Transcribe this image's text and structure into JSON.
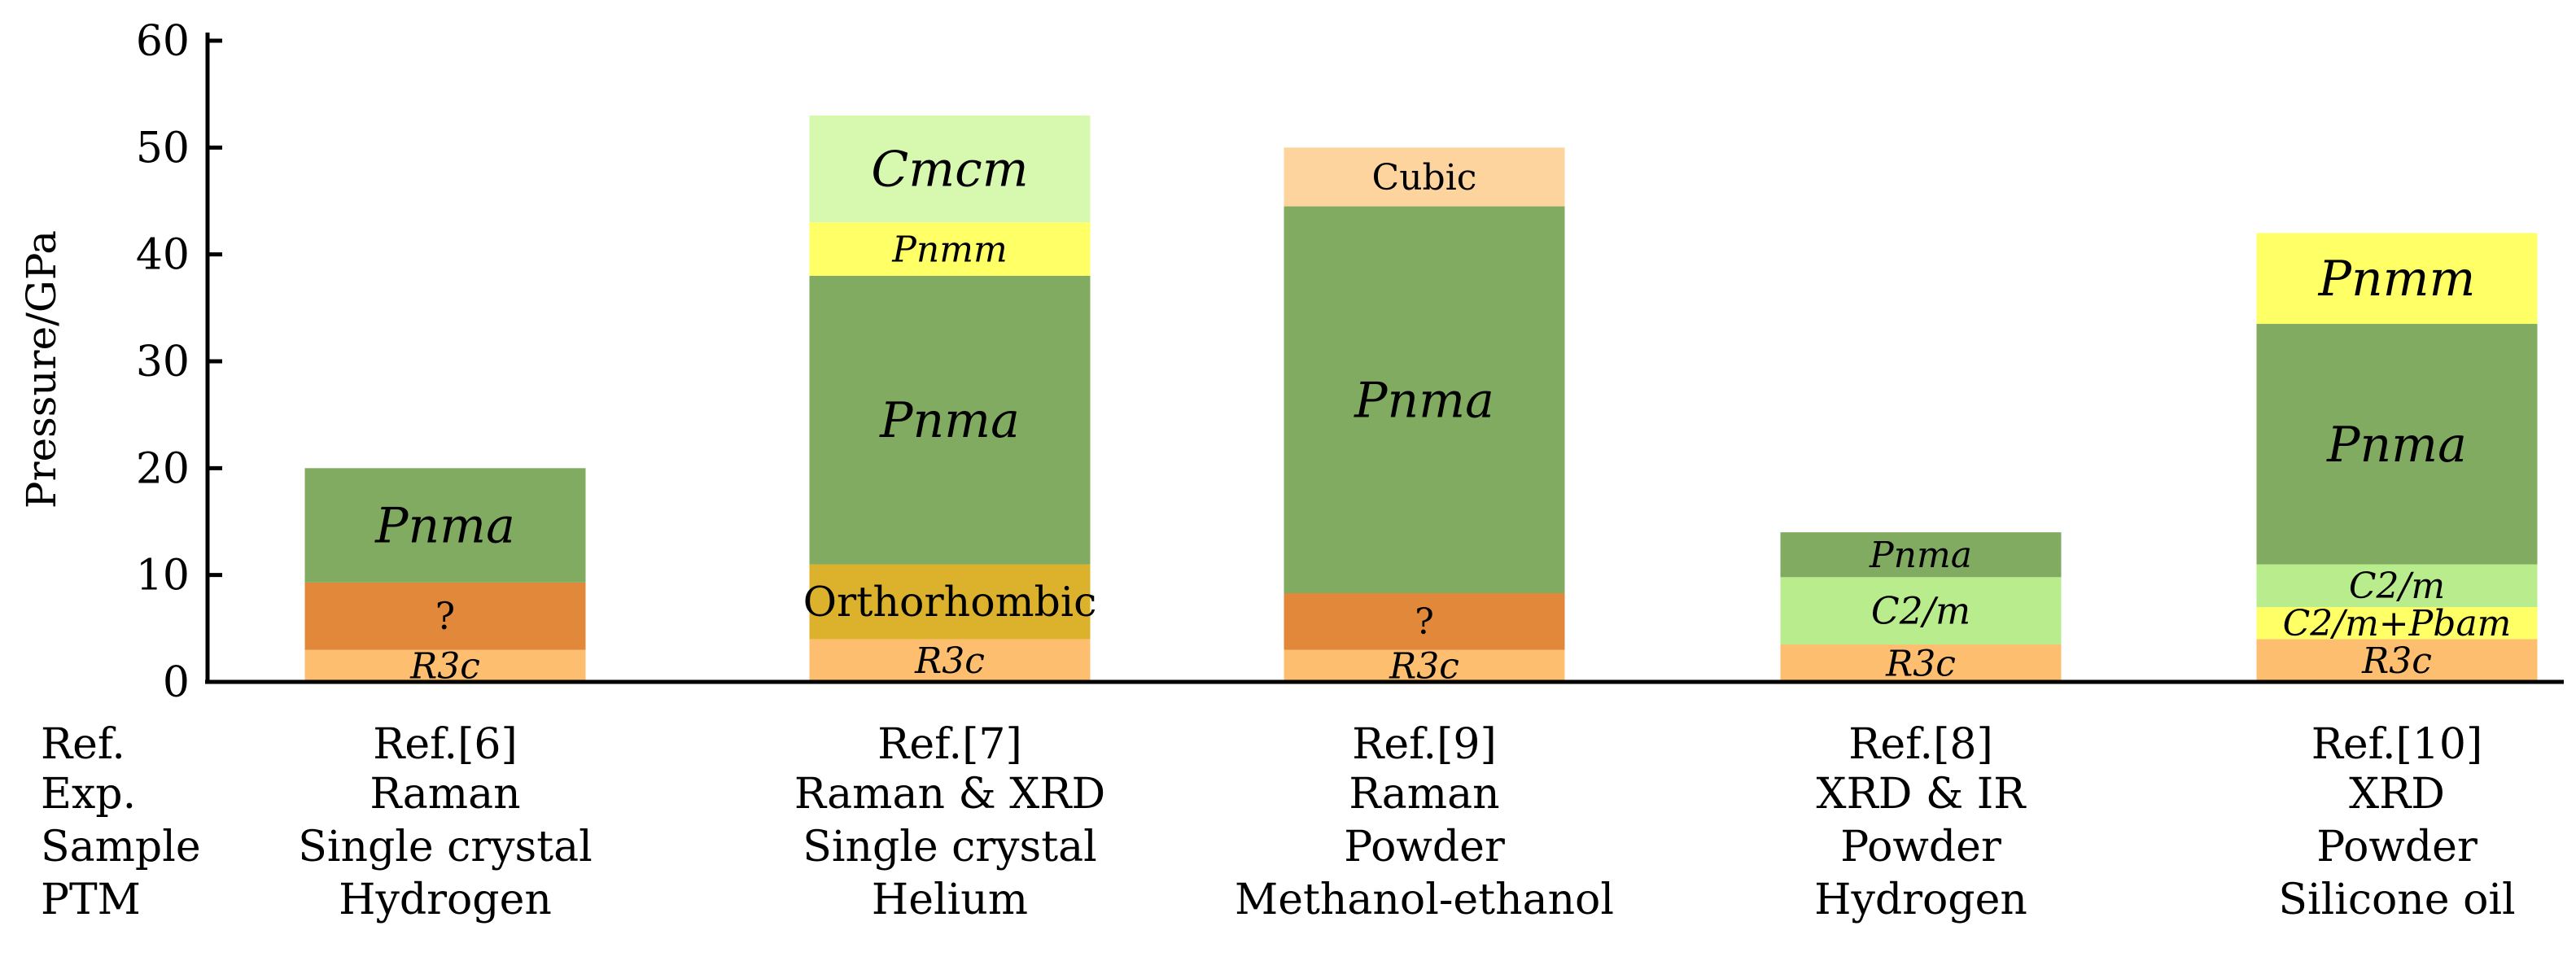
{
  "chart_data": {
    "type": "bar",
    "subtype": "stacked-range",
    "ylabel": "Pressure/GPa",
    "ylim": [
      0,
      60
    ],
    "yticks": [
      0,
      10,
      20,
      30,
      40,
      50,
      60
    ],
    "grid": false,
    "info_row_labels": [
      "Ref.",
      "Exp.",
      "Sample",
      "PTM"
    ],
    "columns": [
      {
        "info": [
          "Ref.[6]",
          "Raman",
          "Single crystal",
          "Hydrogen"
        ],
        "segments": [
          {
            "label": "R3c",
            "from": 0,
            "to": 3,
            "color": "#fdbf6f",
            "italic": true
          },
          {
            "label": "?",
            "from": 3,
            "to": 9.3,
            "color": "#e2883a",
            "italic": false
          },
          {
            "label": "Pnma",
            "from": 9.3,
            "to": 20,
            "color": "#82ab62",
            "italic": true
          }
        ]
      },
      {
        "info": [
          "Ref.[7]",
          "Raman & XRD",
          "Single crystal",
          "Helium"
        ],
        "segments": [
          {
            "label": "R3c",
            "from": 0,
            "to": 4,
            "color": "#fdbf6f",
            "italic": true
          },
          {
            "label": "Orthorhombic",
            "from": 4,
            "to": 11,
            "color": "#dcb22c",
            "italic": false
          },
          {
            "label": "Pnma",
            "from": 11,
            "to": 38,
            "color": "#82ab62",
            "italic": true
          },
          {
            "label": "Pnmm",
            "from": 38,
            "to": 43,
            "color": "#ffff66",
            "italic": true
          },
          {
            "label": "Cmcm",
            "from": 43,
            "to": 53,
            "color": "#d6f9af",
            "italic": true
          }
        ]
      },
      {
        "info": [
          "Ref.[9]",
          "Raman",
          "Powder",
          "Methanol-ethanol"
        ],
        "segments": [
          {
            "label": "R3c",
            "from": 0,
            "to": 3,
            "color": "#fdbf6f",
            "italic": true
          },
          {
            "label": "?",
            "from": 3,
            "to": 8.3,
            "color": "#e2883a",
            "italic": false
          },
          {
            "label": "Pnma",
            "from": 8.3,
            "to": 44.5,
            "color": "#82ab62",
            "italic": true
          },
          {
            "label": "Cubic",
            "from": 44.5,
            "to": 50,
            "color": "#fdd49e",
            "italic": false
          }
        ]
      },
      {
        "info": [
          "Ref.[8]",
          "XRD & IR",
          "Powder",
          "Hydrogen"
        ],
        "segments": [
          {
            "label": "R3c",
            "from": 0,
            "to": 3.5,
            "color": "#fdbf6f",
            "italic": true
          },
          {
            "label": "C2/m",
            "from": 3.5,
            "to": 9.8,
            "color": "#b9ec8c",
            "italic": true
          },
          {
            "label": "Pnma",
            "from": 9.8,
            "to": 14,
            "color": "#82ab62",
            "italic": true
          }
        ]
      },
      {
        "info": [
          "Ref.[10]",
          "XRD",
          "Powder",
          "Silicone oil"
        ],
        "segments": [
          {
            "label": "R3c",
            "from": 0,
            "to": 4,
            "color": "#fdbf6f",
            "italic": true
          },
          {
            "label": "C2/m+Pbam",
            "from": 4,
            "to": 7,
            "color": "#ffff66",
            "italic": true
          },
          {
            "label": "C2/m",
            "from": 7,
            "to": 11,
            "color": "#b9ec8c",
            "italic": true
          },
          {
            "label": "Pnma",
            "from": 11,
            "to": 33.5,
            "color": "#82ab62",
            "italic": true
          },
          {
            "label": "Pnmm",
            "from": 33.5,
            "to": 42,
            "color": "#ffff66",
            "italic": true
          }
        ]
      }
    ]
  }
}
